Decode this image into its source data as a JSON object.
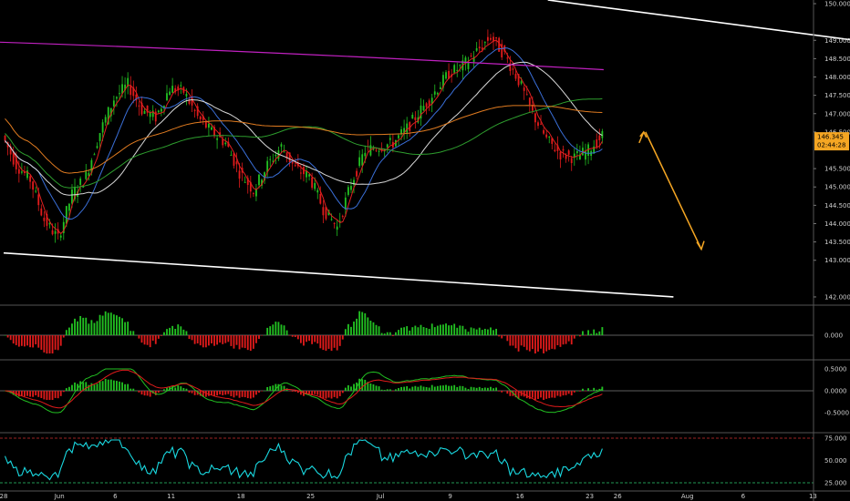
{
  "chart_data": {
    "type": "candlestick",
    "colors": {
      "background": "#000000",
      "up": "#22c022",
      "down": "#e01b1b",
      "trendline": "#ffffff",
      "projection_arrow": "#f5a623",
      "ma_magenta": "#c021c0",
      "ma_orange": "#e07b20",
      "ma_green": "#2e9e2e",
      "ma_white": "#d8d8d8",
      "ma_blue": "#3a6fd8",
      "ma_red": "#e02020",
      "rsi": "#19d8e0",
      "rsi_levels": "#d03030",
      "price_tag": "#f5a623"
    },
    "price_axis": {
      "ticks": [
        "150.000",
        "149.000",
        "148.500",
        "148.000",
        "147.500",
        "147.000",
        "146.500",
        "145.500",
        "145.000",
        "144.500",
        "144.000",
        "143.500",
        "143.000",
        "142.000"
      ],
      "tick_values": [
        150.0,
        149.0,
        148.5,
        148.0,
        147.5,
        147.0,
        146.5,
        145.5,
        145.0,
        144.5,
        144.0,
        143.5,
        143.0,
        142.0
      ],
      "current_price": "146.345",
      "countdown": "02:44:28",
      "ylim": [
        141.85,
        150.1
      ]
    },
    "date_axis": {
      "labels": [
        "28",
        "Jun",
        "6",
        "11",
        "18",
        "25",
        "Jul",
        "9",
        "16",
        "23",
        "26",
        "Aug",
        "6",
        "13"
      ],
      "bar_index": [
        0,
        4,
        8,
        12,
        17,
        22,
        27,
        32,
        37,
        42,
        44,
        49,
        53,
        58
      ]
    },
    "ohlc_close": [
      146.4,
      145.6,
      145.2,
      144.1,
      143.6,
      144.8,
      145.3,
      146.5,
      147.4,
      147.8,
      147.1,
      146.9,
      147.7,
      147.6,
      146.9,
      146.5,
      146.2,
      145.4,
      144.9,
      145.6,
      146.1,
      145.5,
      145.3,
      144.4,
      143.9,
      145.1,
      146.0,
      146.1,
      146.2,
      146.6,
      147.1,
      147.6,
      148.1,
      148.3,
      148.7,
      149.1,
      148.6,
      147.9,
      147.0,
      146.3,
      145.9,
      145.8,
      146.0,
      146.4
    ],
    "trendlines": [
      {
        "from_bar": 0,
        "from_price": 143.2,
        "to_bar": 48,
        "to_price": 142.0
      },
      {
        "from_bar": 39,
        "from_price": 150.1,
        "to_bar": 61,
        "to_price": 149.0
      }
    ],
    "projection": {
      "from_bar": 46,
      "from_price": 146.5,
      "to_bar": 50,
      "to_price": 143.3
    },
    "oscillators": [
      {
        "name": "histogram-1",
        "level_label": "0.000",
        "ticks": [
          "0.000"
        ]
      },
      {
        "name": "macd",
        "level_label": "0.000",
        "ticks": [
          "0.5000",
          "0.0000",
          "-0.5000"
        ]
      },
      {
        "name": "rsi",
        "ticks": [
          "75.000",
          "50.000",
          "25.000"
        ],
        "levels": [
          75,
          25
        ]
      }
    ]
  }
}
